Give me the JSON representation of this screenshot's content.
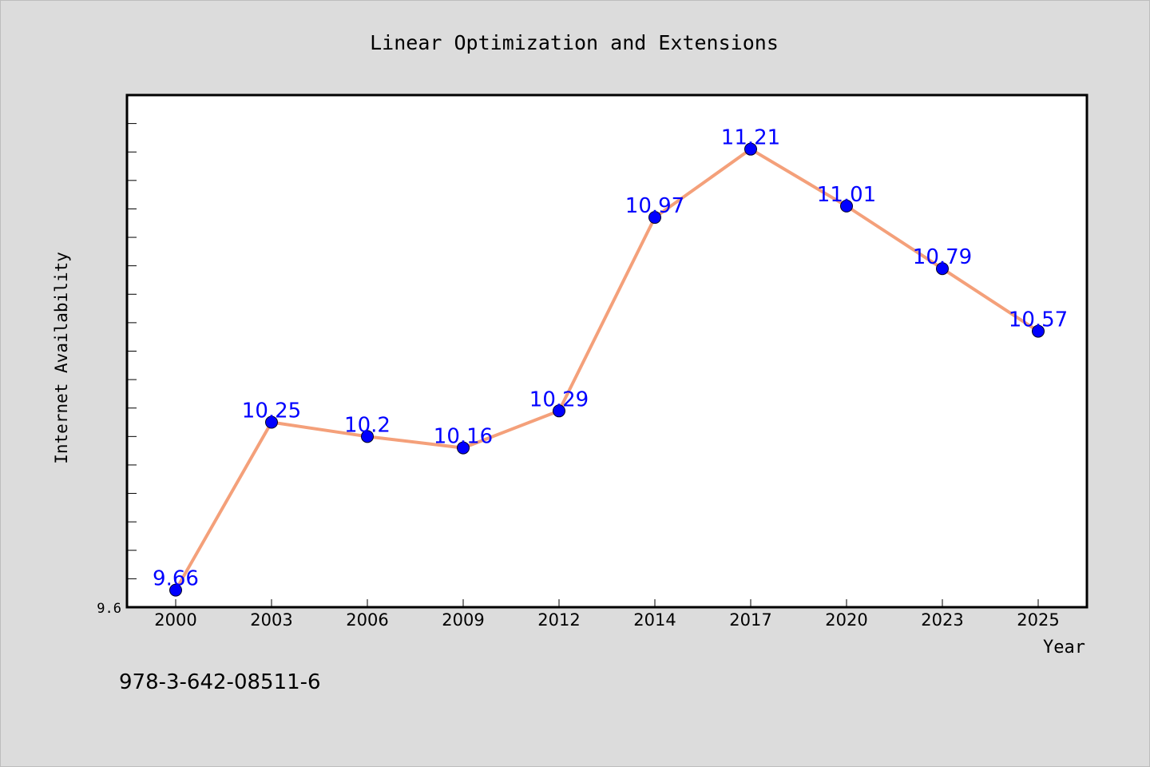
{
  "chart_data": {
    "type": "line",
    "title": "Linear Optimization and Extensions",
    "xlabel": "Year",
    "ylabel": "Internet Availability",
    "x": [
      "2000",
      "2003",
      "2006",
      "2009",
      "2012",
      "2014",
      "2017",
      "2020",
      "2023",
      "2025"
    ],
    "series": [
      {
        "values": [
          9.66,
          10.25,
          10.2,
          10.16,
          10.29,
          10.97,
          11.21,
          11.01,
          10.79,
          10.57
        ]
      }
    ],
    "data_labels": [
      "9.66",
      "10.25",
      "10.2",
      "10.16",
      "10.29",
      "10.97",
      "11.21",
      "11.01",
      "10.79",
      "10.57"
    ],
    "y_tick_label": "9.6",
    "ylim": [
      9.6,
      11.4
    ],
    "grid": false,
    "legend": false,
    "colors": {
      "line": "#f4a07a",
      "marker": "#0000ff",
      "label": "#0000ff",
      "background": "#dcdcdc",
      "plot": "#ffffff"
    }
  },
  "footer_text": "978-3-642-08511-6"
}
